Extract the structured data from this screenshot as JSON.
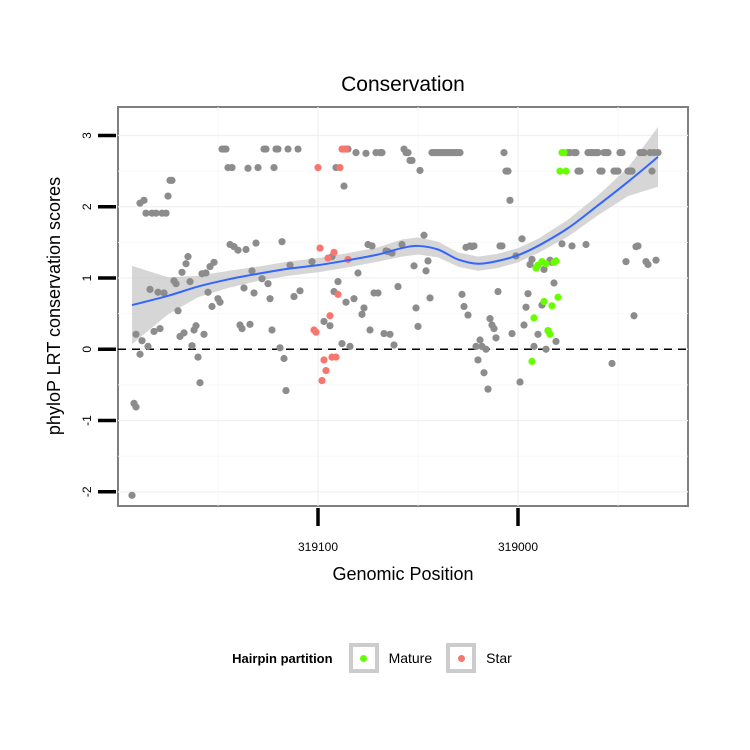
{
  "chart_data": {
    "type": "scatter",
    "title": "Conservation",
    "xlabel": "Genomic Position",
    "ylabel": "phyloP LRT conservation scores",
    "x_reversed": true,
    "xlim": [
      319200,
      318915
    ],
    "ylim": [
      -2.2,
      3.4
    ],
    "x_ticks": [
      319100,
      319000
    ],
    "x_tick_labels": [
      "319100",
      "319000"
    ],
    "y_ticks": [
      -2,
      -1,
      0,
      1,
      2,
      3
    ],
    "y_tick_labels": [
      "-2",
      "-1",
      "0",
      "1",
      "2",
      "3"
    ],
    "hline": 0,
    "grid": true,
    "legend": {
      "position": "bottom",
      "title": "Hairpin partition",
      "entries": [
        {
          "label": "Mature",
          "color": "#66ff00"
        },
        {
          "label": "Star",
          "color": "#f8766d"
        }
      ]
    },
    "colors": {
      "other": "#8c8c8c",
      "mature": "#66ff00",
      "star": "#f8766d",
      "smooth": "#3366ff",
      "ribbon": "#cccccc"
    },
    "series": [
      {
        "group": "other",
        "points": [
          [
            319193,
            -2.05
          ],
          [
            319192,
            -0.76
          ],
          [
            319191,
            -0.81
          ],
          [
            319191,
            0.21
          ],
          [
            319189,
            2.05
          ],
          [
            319189,
            -0.07
          ],
          [
            319188,
            0.12
          ],
          [
            319187,
            2.09
          ],
          [
            319186,
            1.91
          ],
          [
            319185,
            0.04
          ],
          [
            319184,
            0.84
          ],
          [
            319183,
            1.91
          ],
          [
            319182,
            0.25
          ],
          [
            319181,
            1.91
          ],
          [
            319180,
            0.8
          ],
          [
            319179,
            0.29
          ],
          [
            319178,
            1.91
          ],
          [
            319177,
            0.79
          ],
          [
            319176,
            1.91
          ],
          [
            319175,
            2.15
          ],
          [
            319174,
            2.37
          ],
          [
            319173,
            2.37
          ],
          [
            319172,
            0.96
          ],
          [
            319171,
            0.92
          ],
          [
            319170,
            0.54
          ],
          [
            319169,
            0.18
          ],
          [
            319168,
            1.08
          ],
          [
            319167,
            0.23
          ],
          [
            319166,
            1.2
          ],
          [
            319165,
            1.3
          ],
          [
            319164,
            0.95
          ],
          [
            319163,
            0.05
          ],
          [
            319162,
            0.27
          ],
          [
            319161,
            0.33
          ],
          [
            319160,
            -0.11
          ],
          [
            319159,
            -0.47
          ],
          [
            319158,
            1.06
          ],
          [
            319157,
            0.21
          ],
          [
            319156,
            1.07
          ],
          [
            319155,
            0.8
          ],
          [
            319154,
            1.16
          ],
          [
            319153,
            0.6
          ],
          [
            319152,
            1.22
          ],
          [
            319150,
            0.71
          ],
          [
            319149,
            0.66
          ],
          [
            319148,
            2.81
          ],
          [
            319147,
            2.81
          ],
          [
            319146,
            2.81
          ],
          [
            319145,
            2.55
          ],
          [
            319144,
            1.47
          ],
          [
            319143,
            2.55
          ],
          [
            319142,
            1.44
          ],
          [
            319140,
            1.39
          ],
          [
            319139,
            0.34
          ],
          [
            319138,
            0.29
          ],
          [
            319137,
            0.86
          ],
          [
            319136,
            1.4
          ],
          [
            319135,
            2.54
          ],
          [
            319134,
            0.35
          ],
          [
            319133,
            1.1
          ],
          [
            319132,
            0.79
          ],
          [
            319131,
            1.49
          ],
          [
            319130,
            2.55
          ],
          [
            319128,
            0.99
          ],
          [
            319127,
            2.81
          ],
          [
            319126,
            2.81
          ],
          [
            319125,
            0.92
          ],
          [
            319124,
            0.71
          ],
          [
            319123,
            0.27
          ],
          [
            319122,
            2.55
          ],
          [
            319121,
            2.81
          ],
          [
            319120,
            2.81
          ],
          [
            319119,
            0.02
          ],
          [
            319118,
            1.51
          ],
          [
            319117,
            -0.13
          ],
          [
            319116,
            -0.58
          ],
          [
            319115,
            2.81
          ],
          [
            319114,
            1.18
          ],
          [
            319112,
            0.74
          ],
          [
            319110,
            2.81
          ],
          [
            319109,
            0.82
          ],
          [
            319103,
            1.23
          ],
          [
            319097,
            0.39
          ],
          [
            319094,
            0.33
          ],
          [
            319093,
            1.3
          ],
          [
            319092,
            0.81
          ],
          [
            319091,
            2.55
          ],
          [
            319090,
            0.95
          ],
          [
            319088,
            0.08
          ],
          [
            319087,
            2.29
          ],
          [
            319086,
            0.66
          ],
          [
            319085,
            2.81
          ],
          [
            319084,
            0.04
          ],
          [
            319082,
            0.71
          ],
          [
            319081,
            2.76
          ],
          [
            319080,
            1.07
          ],
          [
            319078,
            0.49
          ],
          [
            319077,
            0.58
          ],
          [
            319076,
            2.75
          ],
          [
            319075,
            1.47
          ],
          [
            319074,
            0.27
          ],
          [
            319073,
            1.45
          ],
          [
            319072,
            0.79
          ],
          [
            319071,
            2.76
          ],
          [
            319070,
            0.79
          ],
          [
            319069,
            2.76
          ],
          [
            319068,
            2.76
          ],
          [
            319067,
            0.22
          ],
          [
            319066,
            1.38
          ],
          [
            319065,
            1.37
          ],
          [
            319064,
            0.21
          ],
          [
            319063,
            1.35
          ],
          [
            319062,
            0.06
          ],
          [
            319060,
            0.88
          ],
          [
            319058,
            1.47
          ],
          [
            319057,
            2.81
          ],
          [
            319056,
            2.76
          ],
          [
            319055,
            2.76
          ],
          [
            319054,
            2.65
          ],
          [
            319053,
            2.65
          ],
          [
            319052,
            1.17
          ],
          [
            319051,
            0.58
          ],
          [
            319050,
            0.32
          ],
          [
            319049,
            2.51
          ],
          [
            319047,
            1.6
          ],
          [
            319046,
            1.1
          ],
          [
            319045,
            1.24
          ],
          [
            319044,
            0.72
          ],
          [
            319043,
            2.76
          ],
          [
            319042,
            2.76
          ],
          [
            319041,
            2.76
          ],
          [
            319040,
            2.76
          ],
          [
            319039,
            2.76
          ],
          [
            319038,
            2.76
          ],
          [
            319037,
            2.76
          ],
          [
            319036,
            2.76
          ],
          [
            319035,
            2.76
          ],
          [
            319034,
            2.76
          ],
          [
            319033,
            2.76
          ],
          [
            319032,
            2.76
          ],
          [
            319031,
            2.76
          ],
          [
            319030,
            2.76
          ],
          [
            319029,
            2.76
          ],
          [
            319028,
            0.77
          ],
          [
            319027,
            0.6
          ],
          [
            319026,
            1.43
          ],
          [
            319025,
            0.48
          ],
          [
            319024,
            1.45
          ],
          [
            319023,
            1.44
          ],
          [
            319022,
            1.45
          ],
          [
            319021,
            0.04
          ],
          [
            319020,
            -0.15
          ],
          [
            319019,
            0.13
          ],
          [
            319018,
            0.04
          ],
          [
            319017,
            -0.33
          ],
          [
            319016,
            0.0
          ],
          [
            319015,
            -0.56
          ],
          [
            319014,
            0.43
          ],
          [
            319013,
            0.34
          ],
          [
            319012,
            0.29
          ],
          [
            319011,
            0.16
          ],
          [
            319010,
            0.81
          ],
          [
            319009,
            1.45
          ],
          [
            319008,
            1.45
          ],
          [
            319007,
            2.76
          ],
          [
            319006,
            2.5
          ],
          [
            319005,
            2.5
          ],
          [
            319004,
            2.09
          ],
          [
            319003,
            0.22
          ],
          [
            319001,
            1.31
          ],
          [
            318999,
            -0.46
          ],
          [
            318998,
            1.55
          ],
          [
            318997,
            0.34
          ],
          [
            318996,
            0.59
          ],
          [
            318995,
            0.78
          ],
          [
            318994,
            1.19
          ],
          [
            318993,
            1.26
          ],
          [
            318992,
            0.04
          ],
          [
            318990,
            0.21
          ],
          [
            318988,
            0.62
          ],
          [
            318987,
            1.12
          ],
          [
            318986,
            0.0
          ],
          [
            318985,
            0.26
          ],
          [
            318984,
            1.25
          ],
          [
            318983,
            1.22
          ],
          [
            318982,
            0.93
          ],
          [
            318981,
            0.11
          ],
          [
            318978,
            1.48
          ],
          [
            318975,
            2.76
          ],
          [
            318974,
            2.76
          ],
          [
            318973,
            1.45
          ],
          [
            318972,
            2.76
          ],
          [
            318971,
            2.76
          ],
          [
            318970,
            2.5
          ],
          [
            318969,
            2.5
          ],
          [
            318966,
            1.47
          ],
          [
            318965,
            2.76
          ],
          [
            318964,
            2.76
          ],
          [
            318963,
            2.76
          ],
          [
            318962,
            2.76
          ],
          [
            318961,
            2.76
          ],
          [
            318960,
            2.76
          ],
          [
            318959,
            2.5
          ],
          [
            318958,
            2.5
          ],
          [
            318957,
            2.76
          ],
          [
            318956,
            2.76
          ],
          [
            318955,
            2.76
          ],
          [
            318953,
            -0.2
          ],
          [
            318952,
            2.5
          ],
          [
            318951,
            2.5
          ],
          [
            318950,
            2.5
          ],
          [
            318949,
            2.76
          ],
          [
            318948,
            2.76
          ],
          [
            318946,
            1.23
          ],
          [
            318945,
            2.5
          ],
          [
            318944,
            2.5
          ],
          [
            318943,
            2.5
          ],
          [
            318942,
            0.47
          ],
          [
            318941,
            1.44
          ],
          [
            318940,
            1.45
          ],
          [
            318939,
            2.76
          ],
          [
            318938,
            2.76
          ],
          [
            318937,
            2.76
          ],
          [
            318936,
            1.23
          ],
          [
            318935,
            1.19
          ],
          [
            318934,
            2.76
          ],
          [
            318933,
            2.5
          ],
          [
            318932,
            2.76
          ],
          [
            318931,
            1.25
          ],
          [
            318930,
            2.76
          ]
        ]
      },
      {
        "group": "mature",
        "points": [
          [
            318993,
            -0.17
          ],
          [
            318992,
            0.44
          ],
          [
            318991,
            1.14
          ],
          [
            318990,
            1.18
          ],
          [
            318988,
            1.23
          ],
          [
            318987,
            0.67
          ],
          [
            318986,
            1.2
          ],
          [
            318985,
            0.26
          ],
          [
            318984,
            0.21
          ],
          [
            318983,
            0.61
          ],
          [
            318982,
            1.22
          ],
          [
            318980,
            0.73
          ],
          [
            318981,
            1.24
          ],
          [
            318979,
            2.5
          ],
          [
            318978,
            2.76
          ],
          [
            318977,
            2.76
          ],
          [
            318976,
            2.5
          ]
        ]
      },
      {
        "group": "star",
        "points": [
          [
            319100,
            2.55
          ],
          [
            319101,
            0.24
          ],
          [
            319102,
            0.27
          ],
          [
            319099,
            1.42
          ],
          [
            319098,
            -0.44
          ],
          [
            319097,
            -0.15
          ],
          [
            319096,
            -0.3
          ],
          [
            319095,
            1.28
          ],
          [
            319094,
            0.47
          ],
          [
            319093,
            -0.11
          ],
          [
            319092,
            1.36
          ],
          [
            319091,
            -0.11
          ],
          [
            319090,
            0.77
          ],
          [
            319089,
            2.55
          ],
          [
            319088,
            2.81
          ],
          [
            319087,
            2.81
          ],
          [
            319086,
            2.81
          ],
          [
            319085,
            1.26
          ]
        ]
      }
    ],
    "smooth_line": {
      "x": [
        319193,
        319175,
        319160,
        319145,
        319130,
        319115,
        319100,
        319085,
        319070,
        319058,
        319050,
        319040,
        319030,
        319020,
        319010,
        319000,
        318990,
        318975,
        318960,
        318945,
        318930
      ],
      "y": [
        0.62,
        0.75,
        0.88,
        0.98,
        1.06,
        1.13,
        1.18,
        1.25,
        1.33,
        1.42,
        1.45,
        1.4,
        1.26,
        1.2,
        1.24,
        1.32,
        1.45,
        1.7,
        2.02,
        2.35,
        2.7
      ],
      "ci": [
        0.55,
        0.26,
        0.15,
        0.12,
        0.1,
        0.1,
        0.1,
        0.1,
        0.1,
        0.12,
        0.12,
        0.11,
        0.1,
        0.1,
        0.1,
        0.1,
        0.1,
        0.12,
        0.14,
        0.2,
        0.42
      ]
    }
  }
}
